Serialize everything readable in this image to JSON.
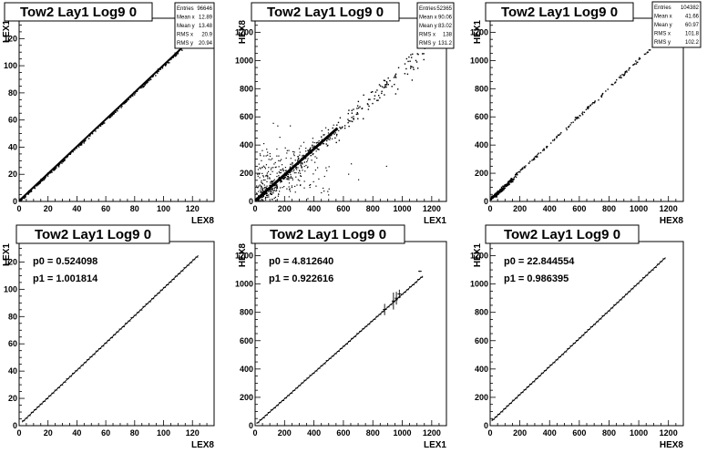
{
  "chart_data": [
    {
      "type": "scatter",
      "title": "Tow2 Lay1 Log9 0",
      "xlabel": "LEX8",
      "ylabel": "LEX1",
      "xlim": [
        0,
        135
      ],
      "ylim": [
        0,
        135
      ],
      "xticks": [
        0,
        20,
        40,
        60,
        80,
        100,
        120
      ],
      "yticks": [
        0,
        20,
        40,
        60,
        80,
        100,
        120
      ],
      "stats": [
        {
          "label": "Entries",
          "value": "96646"
        },
        {
          "label": "Mean x",
          "value": "12.89"
        },
        {
          "label": "Mean y",
          "value": "13.48"
        },
        {
          "label": "RMS x",
          "value": "20.9"
        },
        {
          "label": "RMS y",
          "value": "20.94"
        }
      ],
      "trend": {
        "slope": 1.0,
        "intercept": 0.5,
        "x_range": [
          0,
          120
        ]
      }
    },
    {
      "type": "scatter",
      "title": "Tow2 Lay1 Log9 0",
      "xlabel": "LEX1",
      "ylabel": "HEX8",
      "xlim": [
        0,
        1300
      ],
      "ylim": [
        0,
        1300
      ],
      "xticks": [
        0,
        200,
        400,
        600,
        800,
        1000,
        1200
      ],
      "yticks": [
        0,
        200,
        400,
        600,
        800,
        1000,
        1200
      ],
      "stats": [
        {
          "label": "Entries",
          "value": "52365"
        },
        {
          "label": "Mean x",
          "value": "90.06"
        },
        {
          "label": "Mean y",
          "value": "83.02"
        },
        {
          "label": "RMS x",
          "value": "138"
        },
        {
          "label": "RMS y",
          "value": "131.2"
        }
      ],
      "trend": {
        "slope": 0.92,
        "intercept": 5,
        "x_range": [
          0,
          1150
        ]
      }
    },
    {
      "type": "scatter",
      "title": "Tow2 Lay1 Log9 0",
      "xlabel": "HEX8",
      "ylabel": "HEX1",
      "xlim": [
        0,
        1300
      ],
      "ylim": [
        0,
        1300
      ],
      "xticks": [
        0,
        200,
        400,
        600,
        800,
        1000,
        1200
      ],
      "yticks": [
        0,
        200,
        400,
        600,
        800,
        1000,
        1200
      ],
      "stats": [
        {
          "label": "Entries",
          "value": "104382"
        },
        {
          "label": "Mean x",
          "value": "41.66"
        },
        {
          "label": "Mean y",
          "value": "60.97"
        },
        {
          "label": "RMS x",
          "value": "101.8"
        },
        {
          "label": "RMS y",
          "value": "102.2"
        }
      ],
      "trend": {
        "slope": 0.986,
        "intercept": 22.8,
        "x_range": [
          0,
          1150
        ]
      }
    },
    {
      "type": "line",
      "title": "Tow2 Lay1 Log9 0",
      "xlabel": "LEX8",
      "ylabel": "LEX1",
      "xlim": [
        0,
        135
      ],
      "ylim": [
        0,
        135
      ],
      "xticks": [
        0,
        20,
        40,
        60,
        80,
        100,
        120
      ],
      "yticks": [
        0,
        20,
        40,
        60,
        80,
        100,
        120
      ],
      "fit": [
        {
          "label": "p0 = 0.524098"
        },
        {
          "label": "p1 = 1.001814"
        }
      ],
      "p0": 0.524098,
      "p1": 1.001814,
      "x_range": [
        2,
        124
      ]
    },
    {
      "type": "line",
      "title": "Tow2 Lay1 Log9 0",
      "xlabel": "LEX1",
      "ylabel": "HEX8",
      "xlim": [
        0,
        1300
      ],
      "ylim": [
        0,
        1300
      ],
      "xticks": [
        0,
        200,
        400,
        600,
        800,
        1000,
        1200
      ],
      "yticks": [
        0,
        200,
        400,
        600,
        800,
        1000,
        1200
      ],
      "fit": [
        {
          "label": "p0 = 4.812640"
        },
        {
          "label": "p1 = 0.922616"
        }
      ],
      "p0": 4.81264,
      "p1": 0.922616,
      "x_range": [
        10,
        1140
      ]
    },
    {
      "type": "line",
      "title": "Tow2 Lay1 Log9 0",
      "xlabel": "HEX8",
      "ylabel": "HEX1",
      "xlim": [
        0,
        1300
      ],
      "ylim": [
        0,
        1300
      ],
      "xticks": [
        0,
        200,
        400,
        600,
        800,
        1000,
        1200
      ],
      "yticks": [
        0,
        200,
        400,
        600,
        800,
        1000,
        1200
      ],
      "fit": [
        {
          "label": "p0 = 22.844554"
        },
        {
          "label": "p1 = 0.986395"
        }
      ],
      "p0": 22.844554,
      "p1": 0.986395,
      "x_range": [
        10,
        1180
      ]
    }
  ]
}
